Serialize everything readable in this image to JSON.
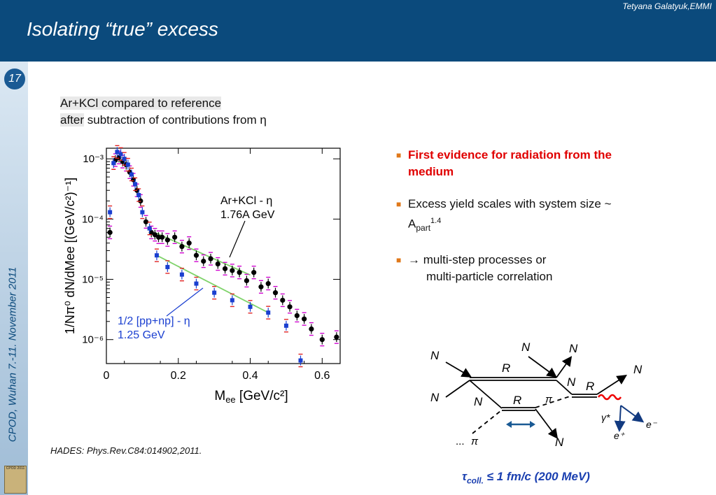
{
  "header": {
    "author": "Tetyana Galatyuk,EMMI",
    "title": "Isolating “true” excess"
  },
  "sidebar": {
    "slide_number": "17",
    "conference": "CPOD, Wuhan 7.-11. November 2011",
    "logo_text": "CPOD 2011"
  },
  "subtitle": {
    "line1": "Ar+KCl compared to reference",
    "line2_lead": "after",
    "line2_rest": " subtraction of contributions from η"
  },
  "bullets": [
    {
      "text": "First evidence for radiation from the medium",
      "color": "#e00000"
    },
    {
      "text": "Excess yield scales with system size ~ A",
      "sub": "part",
      "sup": "1.4"
    },
    {
      "text": "→ multi-step processes or",
      "text2": "multi-particle correlation"
    }
  ],
  "reference": "HADES: Phys.Rev.C84:014902,2011.",
  "tau_note": {
    "symbol": "τ",
    "sub": "coll.",
    "rest": " ≤ 1 fm/c (200 MeV)"
  },
  "chart_data": {
    "type": "scatter",
    "xlabel": "M",
    "xlabel_sub": "ee",
    "xlabel_rest": " [GeV/c²]",
    "ylabel": "1/Nπ⁰ dN/dMee [(GeV/c²)⁻¹]",
    "xlim": [
      0,
      0.65
    ],
    "ylim": [
      4e-07,
      0.0015
    ],
    "ylog": true,
    "x_ticks": [
      0,
      0.2,
      0.4,
      0.6
    ],
    "x_tick_labels": [
      "0",
      "0.2",
      "0.4",
      "0.6"
    ],
    "y_ticks": [
      1e-06,
      1e-05,
      0.0001,
      0.001
    ],
    "y_tick_labels": [
      "10⁻⁶",
      "10⁻⁵",
      "10⁻⁴",
      "10⁻³"
    ],
    "series": [
      {
        "name": "Ar+KCl - η",
        "label_line2": "1.76A GeV",
        "color": "#000000",
        "marker": "circle",
        "x": [
          0.01,
          0.025,
          0.035,
          0.045,
          0.055,
          0.065,
          0.075,
          0.085,
          0.095,
          0.11,
          0.125,
          0.135,
          0.145,
          0.155,
          0.17,
          0.19,
          0.21,
          0.23,
          0.25,
          0.27,
          0.29,
          0.31,
          0.33,
          0.35,
          0.37,
          0.39,
          0.41,
          0.43,
          0.45,
          0.47,
          0.49,
          0.51,
          0.53,
          0.55,
          0.57,
          0.6,
          0.64
        ],
        "y": [
          6e-05,
          0.00095,
          0.00105,
          0.0009,
          0.0008,
          0.0006,
          0.00045,
          0.0003,
          0.0002,
          9e-05,
          6e-05,
          5.5e-05,
          5e-05,
          5e-05,
          4.5e-05,
          5e-05,
          3.5e-05,
          4e-05,
          2.5e-05,
          2e-05,
          2.2e-05,
          1.8e-05,
          1.5e-05,
          1.4e-05,
          1.3e-05,
          9.5e-06,
          1.3e-05,
          7.5e-06,
          8.5e-06,
          6e-06,
          4.5e-06,
          3.5e-06,
          2.5e-06,
          2.2e-06,
          1.5e-06,
          1e-06,
          1.1e-06
        ]
      },
      {
        "name": "1/2 [pp+np] - η",
        "label_line2": "1.25 GeV",
        "color": "#1a3fd0",
        "marker": "square",
        "x": [
          0.01,
          0.02,
          0.03,
          0.04,
          0.05,
          0.06,
          0.07,
          0.08,
          0.09,
          0.1,
          0.12,
          0.14,
          0.17,
          0.21,
          0.25,
          0.3,
          0.35,
          0.4,
          0.45,
          0.5,
          0.54
        ],
        "y": [
          0.00013,
          0.00085,
          0.0013,
          0.0012,
          0.001,
          0.0008,
          0.00055,
          0.00038,
          0.00025,
          0.00013,
          7e-05,
          2.5e-05,
          1.6e-05,
          1.2e-05,
          8.5e-06,
          6e-06,
          4.5e-06,
          3.5e-06,
          2.8e-06,
          1.7e-06,
          4.5e-07
        ]
      }
    ],
    "fit_lines": [
      {
        "color": "#7fd36a",
        "x": [
          0.14,
          0.4
        ],
        "y": [
          5.8e-05,
          1.18e-05
        ]
      },
      {
        "color": "#7fd36a",
        "x": [
          0.14,
          0.45
        ],
        "y": [
          2.5e-05,
          2.8e-06
        ]
      }
    ]
  },
  "diagram": {
    "labels": {
      "N": "N",
      "R": "R",
      "pi": "π",
      "gamma": "γ*",
      "e_minus": "e⁻",
      "e_plus": "e⁺",
      "dots": "...",
      "pi_left": "π"
    }
  }
}
